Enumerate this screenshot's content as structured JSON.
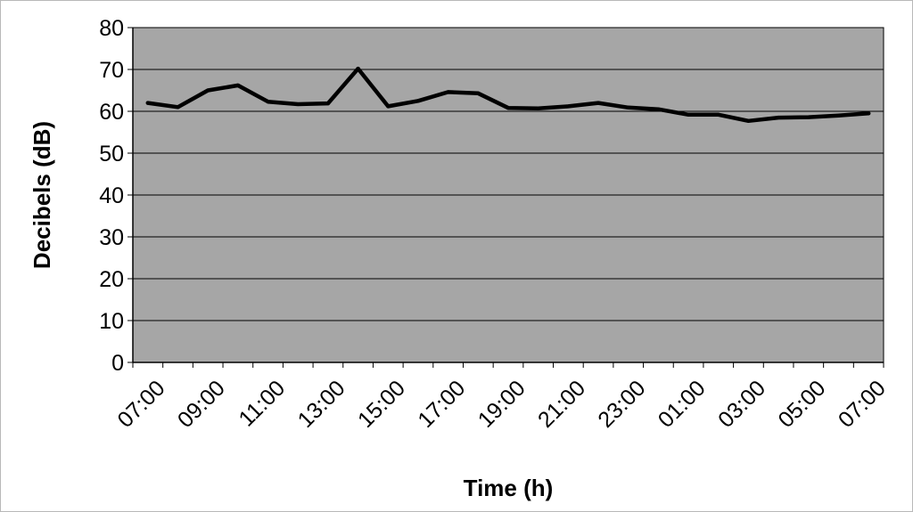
{
  "chart_data": {
    "type": "line",
    "title": "",
    "xlabel": "Time (h)",
    "ylabel": "Decibels (dB)",
    "ylim": [
      0,
      80
    ],
    "yticks": [
      0,
      10,
      20,
      30,
      40,
      50,
      60,
      70,
      80
    ],
    "x": [
      "07:00",
      "08:00",
      "09:00",
      "10:00",
      "11:00",
      "12:00",
      "13:00",
      "14:00",
      "15:00",
      "16:00",
      "17:00",
      "18:00",
      "19:00",
      "20:00",
      "21:00",
      "22:00",
      "23:00",
      "00:00",
      "01:00",
      "02:00",
      "03:00",
      "04:00",
      "05:00",
      "06:00",
      "07:00"
    ],
    "xtick_labels": [
      "07:00",
      "09:00",
      "11:00",
      "13:00",
      "15:00",
      "17:00",
      "19:00",
      "21:00",
      "23:00",
      "01:00",
      "03:00",
      "05:00",
      "07:00"
    ],
    "series": [
      {
        "values": [
          62,
          61,
          65,
          66.2,
          62.3,
          61.7,
          61.9,
          70.2,
          61.2,
          62.5,
          64.6,
          64.3,
          60.8,
          60.7,
          61.2,
          62,
          60.9,
          60.5,
          59.2,
          59.2,
          57.7,
          58.5,
          58.6,
          59,
          59.5
        ]
      }
    ],
    "grid": "horizontal",
    "legend": "none",
    "colors": {
      "plot_background": "#a6a6a6",
      "line": "#000000",
      "gridline": "#000000"
    }
  }
}
